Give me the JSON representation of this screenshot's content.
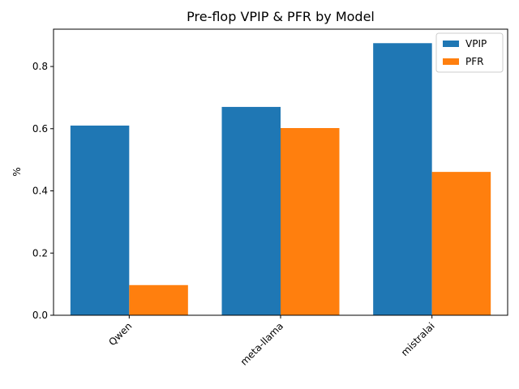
{
  "chart_data": {
    "type": "bar",
    "title": "Pre-flop VPIP & PFR by Model",
    "xlabel": "",
    "ylabel": "%",
    "categories": [
      "Qwen",
      "meta-llama",
      "mistralai"
    ],
    "series": [
      {
        "name": "VPIP",
        "values": [
          0.61,
          0.67,
          0.875
        ],
        "color": "#1f77b4"
      },
      {
        "name": "PFR",
        "values": [
          0.097,
          0.602,
          0.461
        ],
        "color": "#ff7f0e"
      }
    ],
    "ylim": [
      0,
      0.92
    ],
    "yticks": [
      "0.0",
      "0.2",
      "0.4",
      "0.6",
      "0.8"
    ],
    "legend": "top-right",
    "grid": false
  }
}
